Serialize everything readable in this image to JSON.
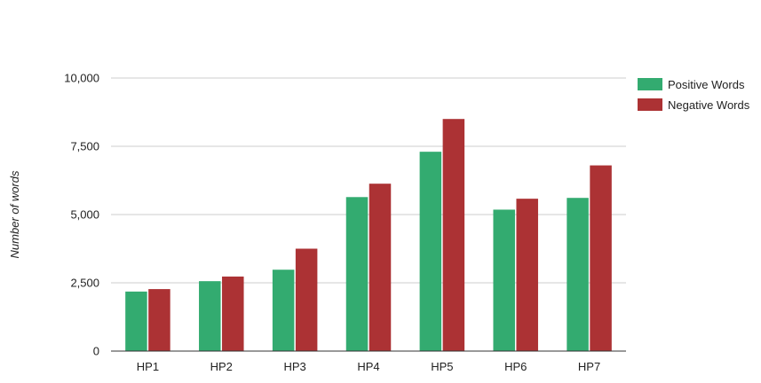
{
  "chart_data": {
    "type": "bar",
    "categories": [
      "HP1",
      "HP2",
      "HP3",
      "HP4",
      "HP5",
      "HP6",
      "HP7"
    ],
    "series": [
      {
        "name": "Positive Words",
        "color": "#33ab70",
        "values": [
          2180,
          2560,
          2980,
          5640,
          7300,
          5180,
          5610
        ]
      },
      {
        "name": "Negative Words",
        "color": "#ac3234",
        "values": [
          2270,
          2730,
          3750,
          6130,
          8500,
          5580,
          6800
        ]
      }
    ],
    "ylabel": "Number of words",
    "xlabel": "",
    "title": "",
    "ylim": [
      0,
      10000
    ],
    "yticks": [
      0,
      2500,
      5000,
      7500,
      10000
    ],
    "ytick_labels": [
      "0",
      "2,500",
      "5,000",
      "7,500",
      "10,000"
    ],
    "grid": true,
    "legend_position": "top-right",
    "grid_color": "#cccccc",
    "axis_color": "#333333"
  }
}
